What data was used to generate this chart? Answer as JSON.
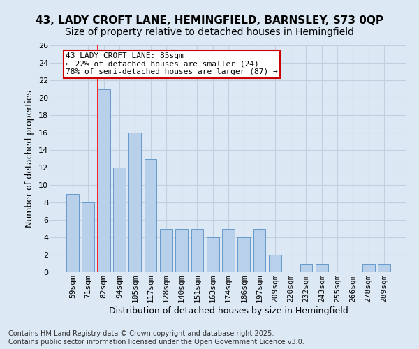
{
  "title_line1": "43, LADY CROFT LANE, HEMINGFIELD, BARNSLEY, S73 0QP",
  "title_line2": "Size of property relative to detached houses in Hemingfield",
  "xlabel": "Distribution of detached houses by size in Hemingfield",
  "ylabel": "Number of detached properties",
  "categories": [
    "59sqm",
    "71sqm",
    "82sqm",
    "94sqm",
    "105sqm",
    "117sqm",
    "128sqm",
    "140sqm",
    "151sqm",
    "163sqm",
    "174sqm",
    "186sqm",
    "197sqm",
    "209sqm",
    "220sqm",
    "232sqm",
    "243sqm",
    "255sqm",
    "266sqm",
    "278sqm",
    "289sqm"
  ],
  "values": [
    9,
    8,
    21,
    12,
    16,
    13,
    5,
    5,
    5,
    4,
    5,
    4,
    5,
    2,
    0,
    1,
    1,
    0,
    0,
    1,
    1
  ],
  "bar_color": "#b8d0ea",
  "bar_edge_color": "#6699cc",
  "red_line_index": 2,
  "ylim": [
    0,
    26
  ],
  "yticks": [
    0,
    2,
    4,
    6,
    8,
    10,
    12,
    14,
    16,
    18,
    20,
    22,
    24,
    26
  ],
  "annotation_title": "43 LADY CROFT LANE: 85sqm",
  "annotation_line2": "← 22% of detached houses are smaller (24)",
  "annotation_line3": "78% of semi-detached houses are larger (87) →",
  "annotation_box_color": "#ffffff",
  "annotation_box_edge_color": "#cc0000",
  "grid_color": "#c0d0e0",
  "background_color": "#dce8f4",
  "fig_background_color": "#dce8f4",
  "footer_line1": "Contains HM Land Registry data © Crown copyright and database right 2025.",
  "footer_line2": "Contains public sector information licensed under the Open Government Licence v3.0.",
  "title_fontsize": 11,
  "subtitle_fontsize": 10,
  "axis_label_fontsize": 9,
  "tick_fontsize": 8,
  "annotation_fontsize": 8,
  "footer_fontsize": 7
}
